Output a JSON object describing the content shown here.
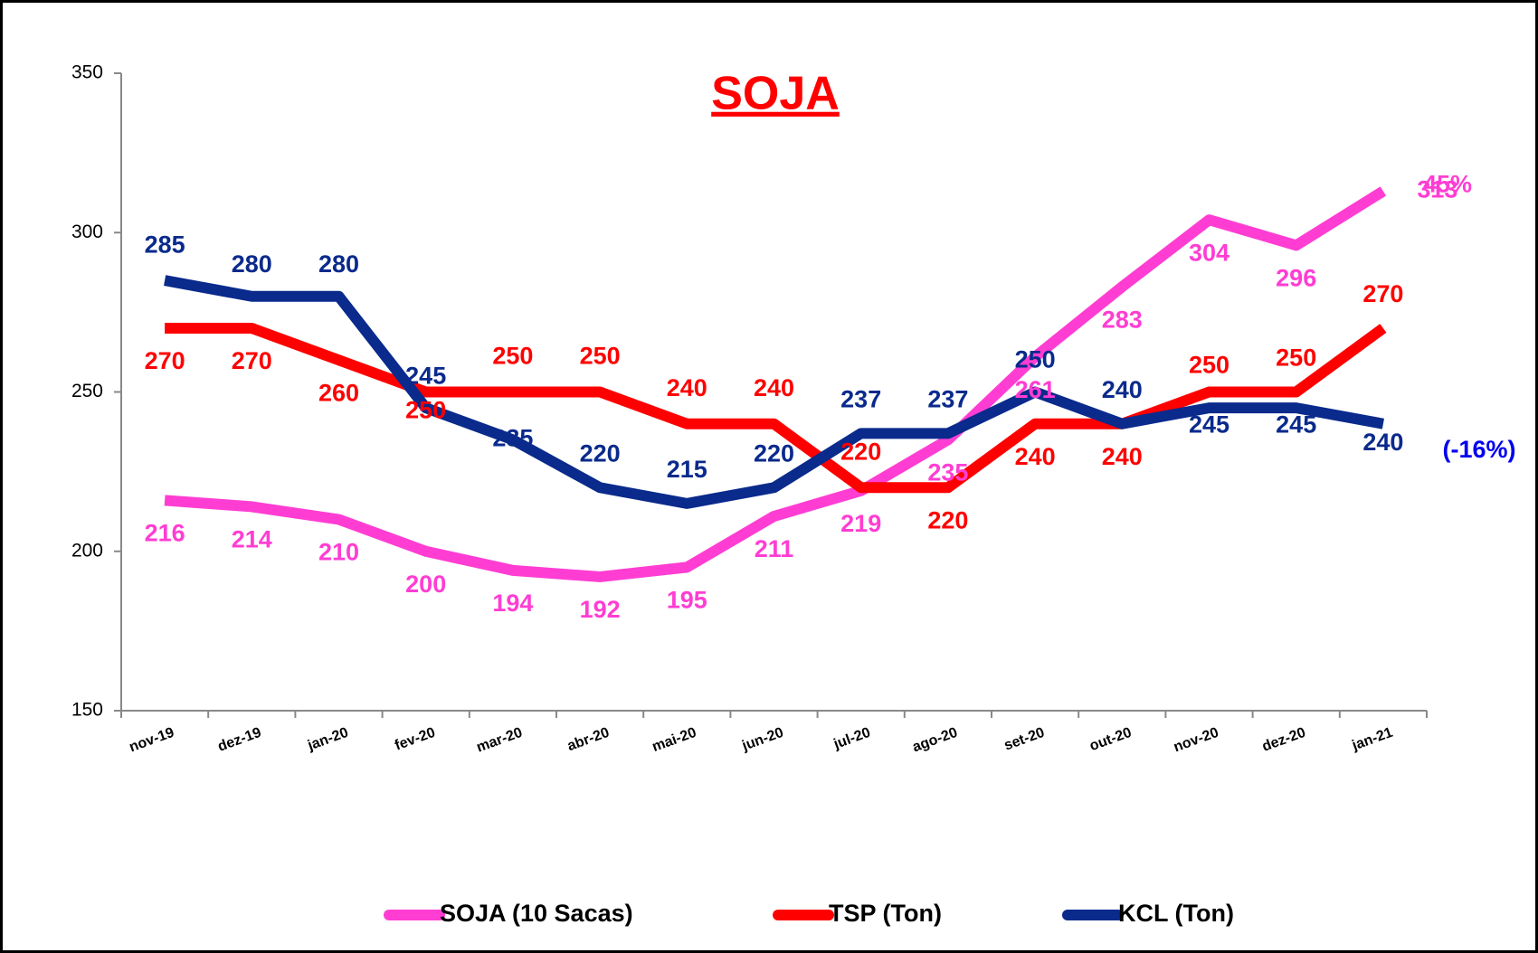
{
  "chart_data": {
    "type": "line",
    "title": "SOJA",
    "categories": [
      "nov-19",
      "dez-19",
      "jan-20",
      "fev-20",
      "mar-20",
      "abr-20",
      "mai-20",
      "jun-20",
      "jul-20",
      "ago-20",
      "set-20",
      "out-20",
      "nov-20",
      "dez-20",
      "jan-21"
    ],
    "series": [
      {
        "name": "SOJA (10 Sacas)",
        "color": "#ff3dd3",
        "values": [
          216,
          214,
          210,
          200,
          194,
          192,
          195,
          211,
          219,
          235,
          261,
          283,
          304,
          296,
          313
        ]
      },
      {
        "name": "TSP (Ton)",
        "color": "#ff0000",
        "values": [
          270,
          270,
          260,
          250,
          250,
          250,
          240,
          240,
          220,
          220,
          240,
          240,
          250,
          250,
          270
        ]
      },
      {
        "name": "KCL (Ton)",
        "color": "#0a2a8c",
        "values": [
          285,
          280,
          280,
          245,
          235,
          220,
          215,
          220,
          237,
          237,
          250,
          240,
          245,
          245,
          240
        ]
      }
    ],
    "annotations": [
      {
        "text": "45%",
        "color": "#ff3dd3"
      },
      {
        "text": "(-16%)",
        "color": "#0000ee"
      }
    ],
    "ylim": [
      150,
      350
    ],
    "yticks": [
      150,
      200,
      250,
      300,
      350
    ],
    "grid": false,
    "legend": "bottom"
  }
}
